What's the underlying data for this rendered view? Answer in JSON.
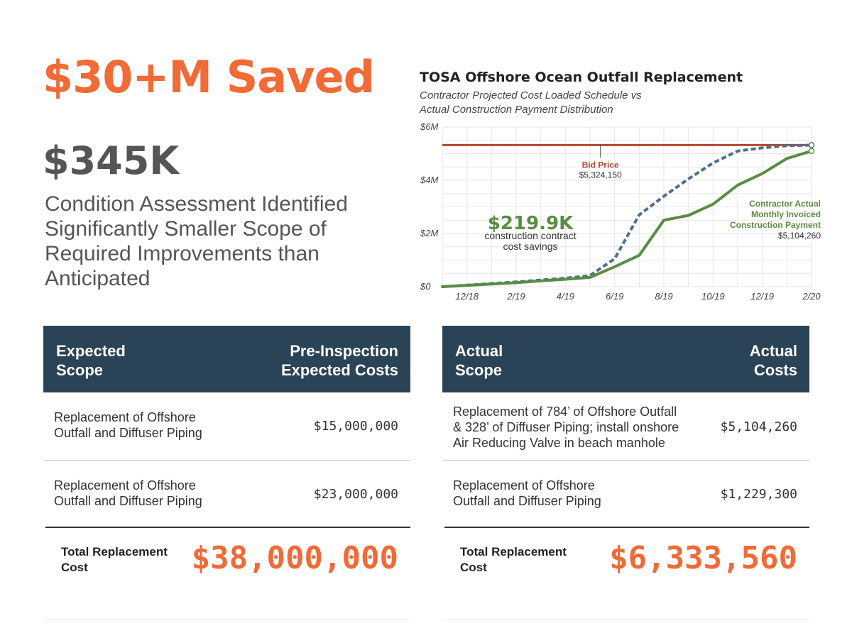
{
  "hero": {
    "headline": "$30+M Saved",
    "assessment_cost": "$345K",
    "description": "Condition Assessment Identified Significantly Smaller Scope of Required Improvements than Anticipated"
  },
  "chart_data": {
    "type": "line",
    "title": "TOSA Offshore Ocean Outfall Replacement",
    "subtitle_lines": [
      "Contractor Projected Cost Loaded Schedule vs",
      "Actual Construction Payment Distribution"
    ],
    "xlabel": "",
    "ylabel": "",
    "x_range": [
      "2018-11",
      "2020-02"
    ],
    "ylim": [
      0,
      6
    ],
    "y_unit": "$M",
    "y_ticks": [
      {
        "value": 0,
        "label": "$0"
      },
      {
        "value": 2,
        "label": "$2M"
      },
      {
        "value": 4,
        "label": "$4M"
      },
      {
        "value": 6,
        "label": "$6M"
      }
    ],
    "x_ticks": [
      {
        "value": "2018-12",
        "label": "12/18"
      },
      {
        "value": "2019-02",
        "label": "2/19"
      },
      {
        "value": "2019-04",
        "label": "4/19"
      },
      {
        "value": "2019-06",
        "label": "6/19"
      },
      {
        "value": "2019-08",
        "label": "8/19"
      },
      {
        "value": "2019-10",
        "label": "10/19"
      },
      {
        "value": "2019-12",
        "label": "12/19"
      },
      {
        "value": "2020-02",
        "label": "2/20"
      }
    ],
    "grid": true,
    "bid_price": {
      "value": 5.32415,
      "label": "Bid Price",
      "amount_label": "$5,324,150",
      "color": "#b5472e"
    },
    "series": [
      {
        "key": "projected",
        "style": "dashed",
        "color": "#4e6f8e",
        "x": [
          "2018-11",
          "2018-12",
          "2019-01",
          "2019-02",
          "2019-03",
          "2019-04",
          "2019-05",
          "2019-06",
          "2019-07",
          "2019-08",
          "2019-09",
          "2019-10",
          "2019-11",
          "2019-12",
          "2020-01",
          "2020-02"
        ],
        "values": [
          0.0,
          0.06,
          0.12,
          0.18,
          0.25,
          0.32,
          0.42,
          1.05,
          2.7,
          3.4,
          4.05,
          4.65,
          5.1,
          5.22,
          5.3,
          5.32
        ]
      },
      {
        "key": "actual",
        "name_lines": [
          "Contractor Actual",
          "Monthly Invoiced",
          "Construction Payment"
        ],
        "amount_label": "$5,104,260",
        "style": "solid",
        "color": "#5b8c44",
        "x": [
          "2018-11",
          "2018-12",
          "2019-01",
          "2019-02",
          "2019-03",
          "2019-04",
          "2019-05",
          "2019-06",
          "2019-07",
          "2019-08",
          "2019-09",
          "2019-10",
          "2019-11",
          "2019-12",
          "2020-01",
          "2020-02"
        ],
        "values": [
          0.0,
          0.05,
          0.1,
          0.15,
          0.22,
          0.28,
          0.35,
          0.75,
          1.18,
          2.5,
          2.68,
          3.1,
          3.82,
          4.25,
          4.82,
          5.1
        ]
      }
    ],
    "savings_annotation": {
      "amount": "$219.9K",
      "text_lines": [
        "construction contract",
        "cost savings"
      ],
      "color": "#5b8c44"
    }
  },
  "expected_table": {
    "headers": [
      [
        "Expected",
        "Scope"
      ],
      [
        "Pre-Inspection",
        "Expected Costs"
      ]
    ],
    "rows": [
      {
        "desc_lines": [
          "Replacement of Offshore",
          "Outfall and Diffuser Piping"
        ],
        "amount": "$15,000,000"
      },
      {
        "desc_lines": [
          "Replacement of Offshore",
          "Outfall and Diffuser Piping"
        ],
        "amount": "$23,000,000"
      }
    ],
    "total_label_lines": [
      "Total Replacement",
      "Cost"
    ],
    "total_amount": "$38,000,000"
  },
  "actual_table": {
    "headers": [
      [
        "Actual",
        "Scope"
      ],
      [
        "Actual",
        "Costs"
      ]
    ],
    "rows": [
      {
        "desc_lines": [
          "Replacement of 784’ of Offshore Outfall",
          "& 328’ of Diffuser Piping; install onshore",
          "Air Reducing Valve in beach manhole"
        ],
        "amount": "$5,104,260"
      },
      {
        "desc_lines": [
          "Replacement of Offshore",
          "Outfall and Diffuser Piping"
        ],
        "amount": "$1,229,300"
      }
    ],
    "total_label_lines": [
      "Total Replacement",
      "Cost"
    ],
    "total_amount": "$6,333,560"
  },
  "colors": {
    "accent_orange": "#f26a35",
    "header_navy": "#2b4356",
    "text_gray": "#555555"
  }
}
